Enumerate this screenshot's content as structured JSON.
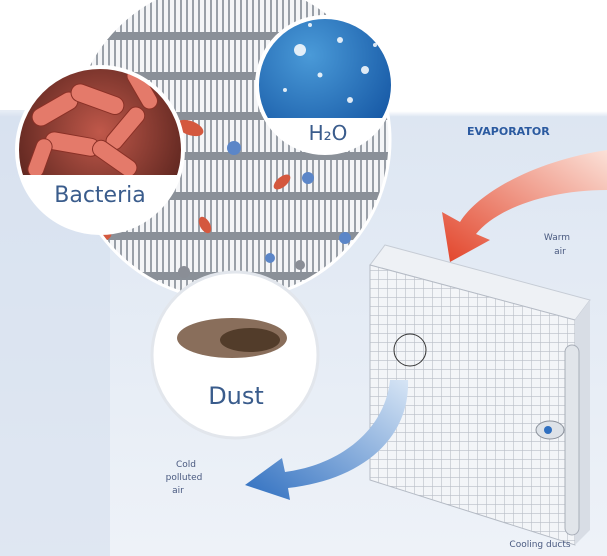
{
  "labels": {
    "evaporator": "EVAPORATOR",
    "warm_air": [
      "Warm",
      "air"
    ],
    "cold_air": [
      "Cold",
      "polluted",
      "air"
    ],
    "cooling_ducts": "Cooling ducts"
  },
  "callouts": {
    "bacteria": "Bacteria",
    "water": "H₂O",
    "dust": "Dust"
  }
}
